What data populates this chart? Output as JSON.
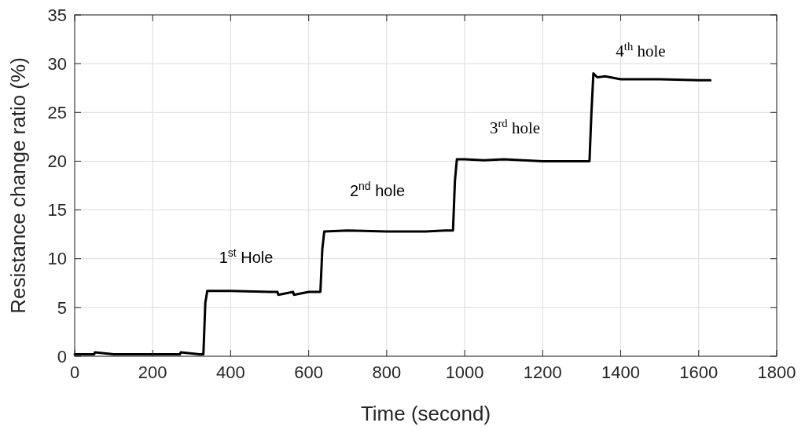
{
  "chart_data": {
    "type": "line",
    "xlabel": "Time (second)",
    "ylabel": "Resistance change ratio (%)",
    "series": [
      {
        "color": "#000000",
        "x": [
          0,
          50,
          52,
          100,
          200,
          270,
          272,
          320,
          330,
          335,
          340,
          400,
          500,
          520,
          522,
          560,
          562,
          600,
          620,
          630,
          635,
          640,
          700,
          800,
          900,
          950,
          960,
          970,
          975,
          980,
          1000,
          1050,
          1100,
          1150,
          1200,
          1250,
          1300,
          1320,
          1325,
          1330,
          1340,
          1360,
          1400,
          1500,
          1600,
          1630
        ],
        "values": [
          0.2,
          0.2,
          0.4,
          0.2,
          0.2,
          0.2,
          0.4,
          0.2,
          0.2,
          5.5,
          6.7,
          6.7,
          6.6,
          6.6,
          6.3,
          6.6,
          6.3,
          6.6,
          6.6,
          6.6,
          11,
          12.8,
          12.9,
          12.8,
          12.8,
          12.9,
          12.9,
          12.9,
          18,
          20.2,
          20.2,
          20.1,
          20.2,
          20.1,
          20.0,
          20.0,
          20.0,
          20.0,
          25,
          29.0,
          28.6,
          28.7,
          28.4,
          28.4,
          28.3,
          28.3
        ]
      }
    ],
    "xlim": [
      0,
      1800
    ],
    "xticks": [
      0,
      200,
      400,
      600,
      800,
      1000,
      1200,
      1400,
      1600,
      1800
    ],
    "ylim": [
      0,
      35
    ],
    "yticks": [
      0,
      5,
      10,
      15,
      20,
      25,
      30,
      35
    ],
    "grid": true,
    "marker": "none",
    "line_style": "solid",
    "annotations": [
      "1$^{st}$ Hole",
      "2$^{nd}$ hole",
      "3$^{rd}$ hole",
      "4$^{th}$ hole"
    ]
  }
}
